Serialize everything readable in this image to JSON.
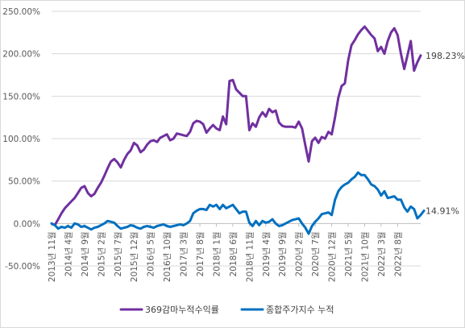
{
  "chart_data": {
    "type": "line",
    "title": "",
    "xlabel": "",
    "ylabel": "",
    "ylim": [
      -50,
      250
    ],
    "yticks": [
      -50,
      0,
      50,
      100,
      150,
      200,
      250
    ],
    "ytick_labels": [
      "-50.00%",
      "0.00%",
      "50.00%",
      "100.00%",
      "150.00%",
      "200.00%",
      "250.00%"
    ],
    "grid": "horizontal",
    "legend_position": "bottom",
    "x_tick_labels": [
      "2013년 11월",
      "2014년 4월",
      "2014년 9월",
      "2015년 2월",
      "2015년 7월",
      "2015년 12월",
      "2016년 5월",
      "2016년 10월",
      "2017년 3월",
      "2017년 8월",
      "2018년 1월",
      "2018년 6월",
      "2018년 11월",
      "2019년 4월",
      "2019년 9월",
      "2020년 2월",
      "2020년 7월",
      "2020년 12월",
      "2021년 5월",
      "2021년 10월",
      "2022년 3월",
      "2022년 8월"
    ],
    "x_tick_every": 5,
    "series": [
      {
        "name": "369감마누적수익률",
        "color": "#7030A0",
        "end_label": "198.23%",
        "values": [
          0,
          -2,
          5,
          12,
          18,
          22,
          26,
          30,
          36,
          42,
          44,
          36,
          32,
          35,
          42,
          48,
          56,
          65,
          73,
          76,
          72,
          66,
          75,
          82,
          86,
          95,
          92,
          84,
          87,
          93,
          97,
          98,
          96,
          101,
          103,
          105,
          98,
          100,
          106,
          105,
          104,
          103,
          108,
          118,
          121,
          120,
          117,
          107,
          112,
          116,
          112,
          110,
          126,
          117,
          168,
          169,
          158,
          154,
          150,
          150,
          110,
          118,
          114,
          125,
          131,
          126,
          135,
          131,
          133,
          119,
          115,
          114,
          114,
          114,
          113,
          120,
          112,
          92,
          73,
          97,
          101,
          95,
          102,
          100,
          108,
          105,
          125,
          148,
          162,
          165,
          192,
          210,
          216,
          223,
          228,
          232,
          227,
          222,
          218,
          203,
          208,
          200,
          215,
          225,
          230,
          222,
          200,
          182,
          198,
          215,
          180,
          190,
          198
        ]
      },
      {
        "name": "종합주가지수 누적",
        "color": "#0070C0",
        "end_label": "14.91%",
        "values": [
          0,
          -2,
          -6,
          -4,
          -5,
          -3,
          -5,
          0,
          -1,
          -4,
          -3,
          -5,
          -7,
          -5,
          -4,
          -2,
          0,
          3,
          2,
          1,
          -3,
          -6,
          -5,
          -4,
          -2,
          -3,
          -5,
          -6,
          -4,
          -3,
          -4,
          -5,
          -3,
          -2,
          -1,
          -3,
          -4,
          -3,
          -2,
          -1,
          -2,
          0,
          3,
          12,
          15,
          17,
          17,
          16,
          22,
          20,
          22,
          17,
          22,
          18,
          20,
          22,
          17,
          12,
          14,
          14,
          1,
          -3,
          3,
          -2,
          3,
          1,
          2,
          5,
          0,
          -3,
          -2,
          0,
          2,
          4,
          5,
          6,
          0,
          -5,
          -12,
          -3,
          2,
          6,
          11,
          12,
          13,
          10,
          28,
          38,
          43,
          46,
          48,
          52,
          55,
          60,
          57,
          57,
          52,
          46,
          44,
          40,
          33,
          38,
          30,
          31,
          32,
          28,
          28,
          19,
          14,
          20,
          17,
          6,
          10,
          15
        ]
      }
    ]
  }
}
